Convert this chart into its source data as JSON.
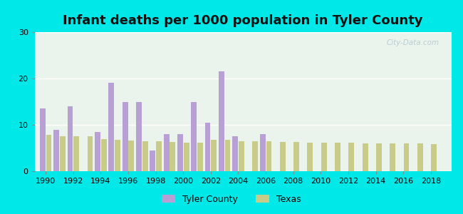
{
  "title": "Infant deaths per 1000 population in Tyler County",
  "years": [
    1990,
    1991,
    1992,
    1993,
    1994,
    1995,
    1996,
    1997,
    1998,
    1999,
    2000,
    2001,
    2002,
    2003,
    2004,
    2005,
    2006,
    2007,
    2008,
    2009,
    2010,
    2011,
    2012,
    2013,
    2014,
    2015,
    2016,
    2017,
    2018
  ],
  "tyler_county": [
    13.5,
    9.0,
    14.0,
    0,
    8.5,
    19.0,
    15.0,
    15.0,
    4.5,
    8.0,
    8.0,
    15.0,
    10.5,
    21.5,
    7.5,
    0,
    8.0,
    0,
    0,
    0,
    0,
    0,
    0,
    0,
    0,
    0,
    0,
    0,
    0
  ],
  "texas": [
    7.9,
    7.6,
    7.6,
    7.5,
    7.0,
    6.8,
    6.6,
    6.5,
    6.4,
    6.3,
    6.2,
    6.1,
    6.8,
    6.8,
    6.5,
    6.5,
    6.5,
    6.3,
    6.3,
    6.2,
    6.2,
    6.2,
    6.1,
    6.0,
    6.0,
    6.0,
    6.0,
    6.0,
    5.8
  ],
  "tyler_color": "#b89fd4",
  "texas_color": "#c8cc88",
  "bg_color": "#eaf4ec",
  "outer_bg": "#00e8e8",
  "ylim": [
    0,
    30
  ],
  "yticks": [
    0,
    10,
    20,
    30
  ],
  "title_fontsize": 13,
  "bar_width": 0.45
}
